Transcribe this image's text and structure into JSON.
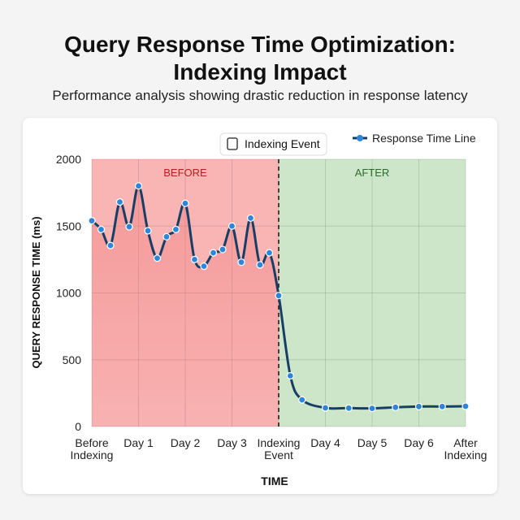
{
  "header": {
    "title_line1": "Query Response Time Optimization:",
    "title_line2": "Indexing Impact",
    "subtitle": "Performance analysis showing drastic reduction in response latency"
  },
  "chart_data": {
    "type": "line",
    "title": "Query Response Time Optimization: Indexing Impact",
    "xlabel": "TIME",
    "ylabel": "QUERY RESPONSE TIME (ms)",
    "ylim": [
      0,
      2000
    ],
    "yticks": [
      0,
      500,
      1000,
      1500,
      2000
    ],
    "xticks": [
      {
        "x": 0,
        "label": [
          "Before",
          "Indexing"
        ]
      },
      {
        "x": 1,
        "label": [
          "Day 1"
        ]
      },
      {
        "x": 2,
        "label": [
          "Day 2"
        ]
      },
      {
        "x": 3,
        "label": [
          "Day 3"
        ]
      },
      {
        "x": 4,
        "label": [
          "Indexing",
          "Event"
        ]
      },
      {
        "x": 5,
        "label": [
          "Day 4"
        ]
      },
      {
        "x": 6,
        "label": [
          "Day 5"
        ]
      },
      {
        "x": 7,
        "label": [
          "Day 6"
        ]
      },
      {
        "x": 8,
        "label": [
          "After",
          "Indexing"
        ]
      }
    ],
    "xlim": [
      0,
      8
    ],
    "grid": true,
    "regions": [
      {
        "label": "BEFORE",
        "from": 0,
        "to": 4,
        "color": "#f9b4b4",
        "label_color": "#b22222"
      },
      {
        "label": "AFTER",
        "from": 4,
        "to": 8,
        "color": "#cde6c9",
        "label_color": "#2e6b2e"
      }
    ],
    "event": {
      "x": 4,
      "label": "Indexing Event"
    },
    "legend": {
      "position": "top-right"
    },
    "series": [
      {
        "name": "Response Time Line",
        "line_color": "#173f66",
        "marker_color": "#2f86d8",
        "x": [
          0,
          0.2,
          0.4,
          0.6,
          0.8,
          1,
          1.2,
          1.4,
          1.6,
          1.8,
          2,
          2.2,
          2.4,
          2.6,
          2.8,
          3,
          3.2,
          3.4,
          3.6,
          3.8,
          4,
          4.25,
          4.5,
          5,
          5.5,
          6,
          6.5,
          7,
          7.5,
          8
        ],
        "y": [
          1540,
          1475,
          1355,
          1680,
          1495,
          1800,
          1465,
          1260,
          1420,
          1475,
          1670,
          1250,
          1200,
          1300,
          1325,
          1500,
          1230,
          1560,
          1210,
          1300,
          980,
          380,
          200,
          140,
          138,
          136,
          144,
          150,
          150,
          152
        ]
      }
    ]
  }
}
